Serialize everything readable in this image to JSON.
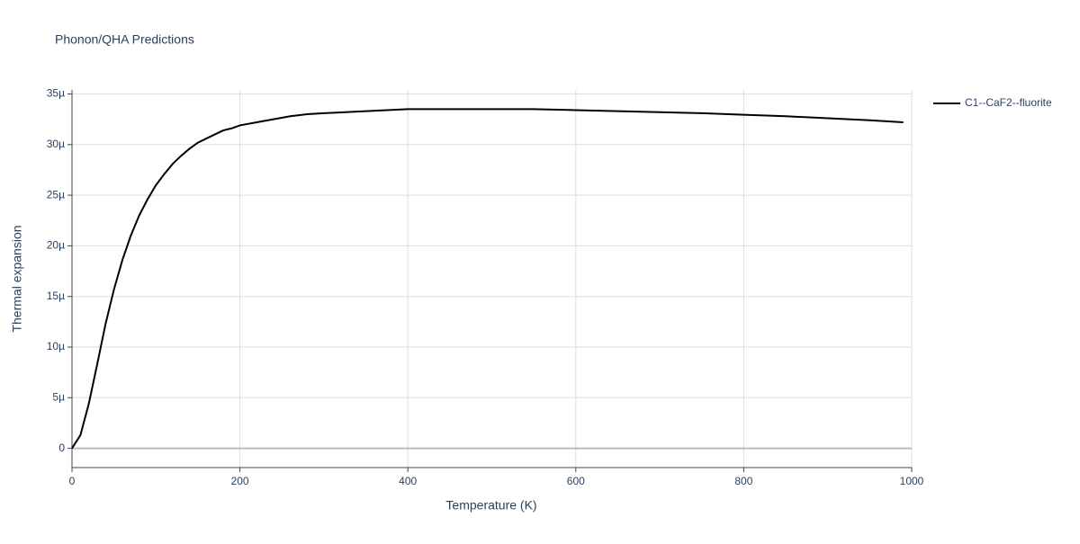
{
  "chart_data": {
    "type": "line",
    "title": "Phonon/QHA Predictions",
    "x_label": "Temperature (K)",
    "y_label": "Thermal expansion",
    "x": [
      0,
      10,
      20,
      30,
      40,
      50,
      60,
      70,
      80,
      90,
      100,
      110,
      120,
      130,
      140,
      150,
      160,
      170,
      180,
      190,
      200,
      220,
      240,
      260,
      280,
      300,
      350,
      400,
      450,
      500,
      550,
      600,
      650,
      700,
      750,
      800,
      850,
      900,
      950,
      990
    ],
    "series": [
      {
        "name": "C1--CaF2--fluorite",
        "color": "#000000",
        "values": [
          0,
          1.3e-06,
          4.4e-06,
          8.3e-06,
          1.23e-05,
          1.57e-05,
          1.86e-05,
          2.1e-05,
          2.3e-05,
          2.46e-05,
          2.6e-05,
          2.71e-05,
          2.81e-05,
          2.89e-05,
          2.96e-05,
          3.02e-05,
          3.06e-05,
          3.1e-05,
          3.14e-05,
          3.16e-05,
          3.19e-05,
          3.22e-05,
          3.25e-05,
          3.28e-05,
          3.3e-05,
          3.31e-05,
          3.33e-05,
          3.35e-05,
          3.35e-05,
          3.35e-05,
          3.35e-05,
          3.34e-05,
          3.33e-05,
          3.32e-05,
          3.31e-05,
          3.295e-05,
          3.28e-05,
          3.26e-05,
          3.24e-05,
          3.22e-05
        ]
      }
    ],
    "xlim": [
      0,
      1000
    ],
    "xticks": [
      0,
      200,
      400,
      600,
      800,
      1000
    ],
    "ylim": [
      -1.9e-06,
      3.54e-05
    ],
    "yticks": [
      0,
      {
        "value": 5e-06,
        "label": "5µ"
      },
      {
        "value": 1e-05,
        "label": "10µ"
      },
      {
        "value": 1.5e-05,
        "label": "15µ"
      },
      {
        "value": 2e-05,
        "label": "20µ"
      },
      {
        "value": 2.5e-05,
        "label": "25µ"
      },
      {
        "value": 3e-05,
        "label": "30µ"
      },
      {
        "value": 3.5e-05,
        "label": "35µ"
      }
    ],
    "grid": true,
    "legend": "right"
  }
}
